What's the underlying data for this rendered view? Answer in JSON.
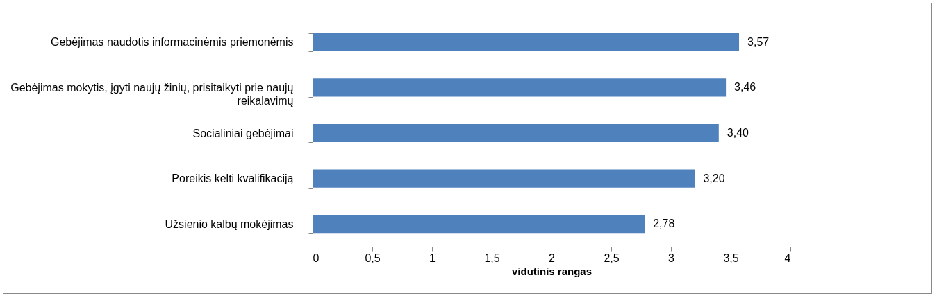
{
  "chart_data": {
    "type": "bar",
    "orientation": "horizontal",
    "categories": [
      "Gebėjimas naudotis informacinėmis priemonėmis",
      "Gebėjimas mokytis, įgyti naujų žinių, prisitaikyti prie naujų reikalavimų",
      "Socialiniai gebėjimai",
      "Poreikis kelti kvalifikaciją",
      "Užsienio kalbų mokėjimas"
    ],
    "values": [
      3.57,
      3.46,
      3.4,
      3.2,
      2.78
    ],
    "value_labels": [
      "3,57",
      "3,46",
      "3,40",
      "3,20",
      "2,78"
    ],
    "color": "#4f81bd",
    "xlim": [
      0,
      4
    ],
    "xticks": [
      0,
      {
        "value": 0.5,
        "label": "0,5"
      },
      1,
      {
        "value": 1.5,
        "label": "1,5"
      },
      2,
      {
        "value": 2.5,
        "label": "2,5"
      },
      3,
      {
        "value": 3.5,
        "label": "3,5"
      },
      4
    ],
    "xlabel": "vidutinis rangas",
    "grid": false
  }
}
